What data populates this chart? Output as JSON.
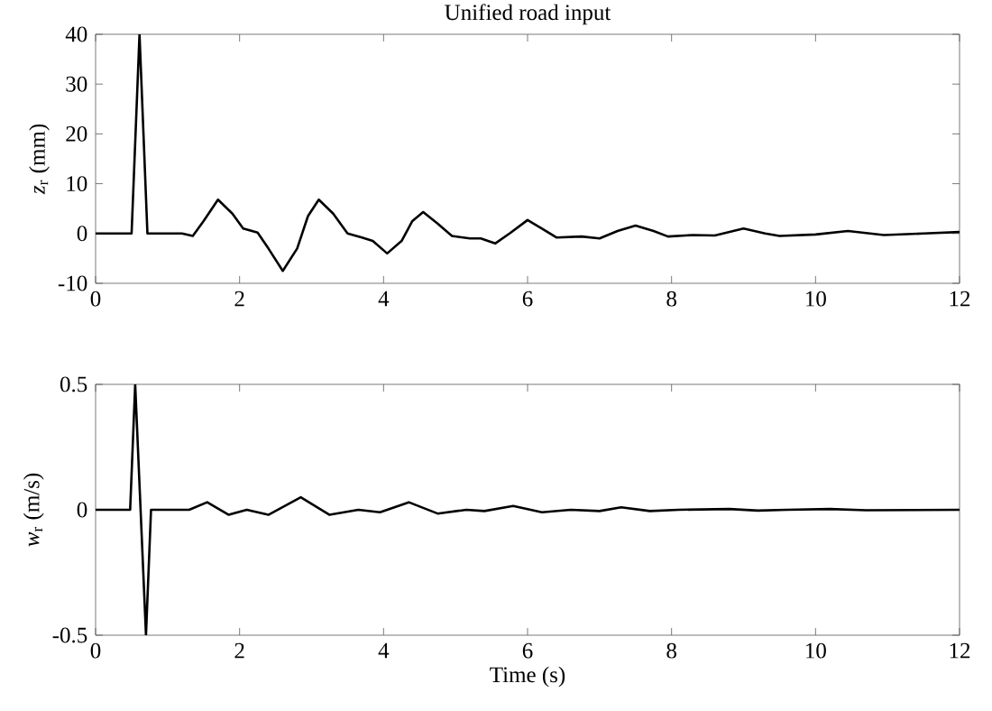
{
  "chart_data": [
    {
      "type": "line",
      "title": "Unified road input",
      "ylabel": "*z*$_{r}$ (mm)",
      "x": [
        0,
        0.5,
        0.61,
        0.72,
        1.2,
        1.35,
        1.5,
        1.7,
        1.9,
        2.05,
        2.25,
        2.4,
        2.6,
        2.8,
        2.95,
        3.1,
        3.3,
        3.5,
        3.7,
        3.85,
        4.05,
        4.25,
        4.4,
        4.55,
        4.75,
        4.95,
        5.2,
        5.35,
        5.55,
        5.75,
        6.0,
        6.2,
        6.4,
        6.75,
        7.0,
        7.25,
        7.5,
        7.75,
        7.95,
        8.3,
        8.6,
        9.0,
        9.3,
        9.5,
        10.0,
        10.45,
        10.95,
        11.5,
        12
      ],
      "series": [
        {
          "color": "#000000",
          "values": [
            0,
            0,
            40,
            0,
            0,
            -0.5,
            2.5,
            6.8,
            4,
            1,
            0.2,
            -3,
            -7.5,
            -3,
            3.5,
            6.8,
            4,
            0,
            -0.8,
            -1.5,
            -4,
            -1.5,
            2.5,
            4.3,
            2,
            -0.5,
            -1,
            -1,
            -2,
            0,
            2.7,
            1,
            -0.8,
            -0.6,
            -1,
            0.5,
            1.6,
            0.5,
            -0.6,
            -0.3,
            -0.4,
            1,
            0,
            -0.5,
            -0.2,
            0.5,
            -0.3,
            0,
            0.3
          ]
        }
      ],
      "xlim": [
        0,
        12
      ],
      "xticks": [
        0,
        2,
        4,
        6,
        8,
        10,
        12
      ],
      "ylim": [
        -10,
        40
      ],
      "yticks": [
        -10,
        0,
        10,
        20,
        30,
        40
      ]
    },
    {
      "type": "line",
      "xlabel": "Time (s)",
      "ylabel": "*w*$_{r}$ (m/s)",
      "x": [
        0,
        0.48,
        0.55,
        0.7,
        0.77,
        1.3,
        1.55,
        1.85,
        2.1,
        2.4,
        2.85,
        3.25,
        3.65,
        3.95,
        4.35,
        4.75,
        5.15,
        5.4,
        5.8,
        6.2,
        6.6,
        7.0,
        7.3,
        7.7,
        8.1,
        8.8,
        9.2,
        9.6,
        10.2,
        10.7,
        12
      ],
      "series": [
        {
          "color": "#000000",
          "values": [
            0,
            0,
            0.5,
            -0.5,
            0,
            0,
            0.03,
            -0.02,
            0,
            -0.02,
            0.05,
            -0.02,
            0,
            -0.01,
            0.03,
            -0.015,
            0,
            -0.005,
            0.015,
            -0.01,
            0,
            -0.005,
            0.01,
            -0.005,
            0,
            0.003,
            -0.003,
            0,
            0.003,
            -0.002,
            0
          ]
        }
      ],
      "xlim": [
        0,
        12
      ],
      "xticks": [
        0,
        2,
        4,
        6,
        8,
        10,
        12
      ],
      "ylim": [
        -0.5,
        0.5
      ],
      "yticks": [
        -0.5,
        0,
        0.5
      ]
    }
  ]
}
